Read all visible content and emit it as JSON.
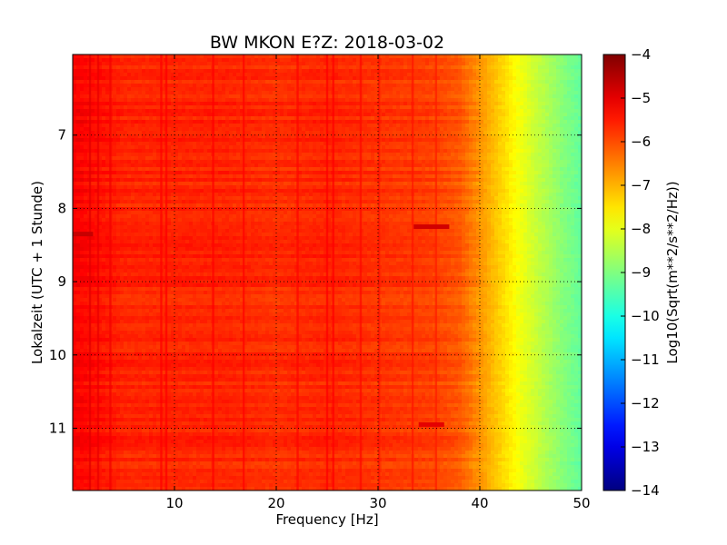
{
  "chart_data": {
    "type": "heatmap",
    "title": "BW MKON E?Z: 2018-03-02",
    "xlabel": "Frequency [Hz]",
    "ylabel": "Lokalzeit (UTC + 1 Stunde)",
    "xlim": [
      0,
      50
    ],
    "ylim": [
      5.9,
      11.85
    ],
    "y_inverted": true,
    "x_ticks": [
      10,
      20,
      30,
      40,
      50
    ],
    "x_tick_labels": [
      "10",
      "20",
      "30",
      "40",
      "50"
    ],
    "y_ticks": [
      7,
      8,
      9,
      10,
      11
    ],
    "y_tick_labels": [
      "7",
      "8",
      "9",
      "10",
      "11"
    ],
    "grid": true,
    "colorbar": {
      "label": "Log10(Sqrt(m**2/s**2/Hz))",
      "min": -14,
      "max": -4,
      "ticks": [
        -4,
        -5,
        -6,
        -7,
        -8,
        -9,
        -10,
        -11,
        -12,
        -13,
        -14
      ],
      "tick_labels": [
        "−4",
        "−5",
        "−6",
        "−7",
        "−8",
        "−9",
        "−10",
        "−11",
        "−12",
        "−13",
        "−14"
      ],
      "colormap": "jet"
    },
    "spectrum_profile": {
      "frequency_hz": [
        0,
        5,
        10,
        15,
        20,
        25,
        30,
        35,
        38,
        40,
        42,
        44,
        46,
        48,
        50
      ],
      "log10_amplitude": [
        -5.2,
        -5.6,
        -5.6,
        -5.6,
        -5.7,
        -5.6,
        -5.75,
        -5.85,
        -6.1,
        -6.7,
        -7.3,
        -7.9,
        -8.4,
        -8.9,
        -9.3
      ]
    },
    "narrowband_lines_hz": [
      1.7,
      2.5,
      3.7,
      8.7,
      9.2,
      13.8,
      16.8,
      22.1,
      25.0,
      25.6,
      28.3,
      30.1,
      33.4,
      35.7
    ],
    "high_energy_bands": [
      {
        "time": 8.25,
        "freq_range": [
          33.5,
          37
        ],
        "log10_amplitude": -4.8
      },
      {
        "time": 8.35,
        "freq_range": [
          0,
          2
        ],
        "log10_amplitude": -4.7
      },
      {
        "time": 10.95,
        "freq_range": [
          34,
          36.5
        ],
        "log10_amplitude": -5.0
      }
    ]
  }
}
